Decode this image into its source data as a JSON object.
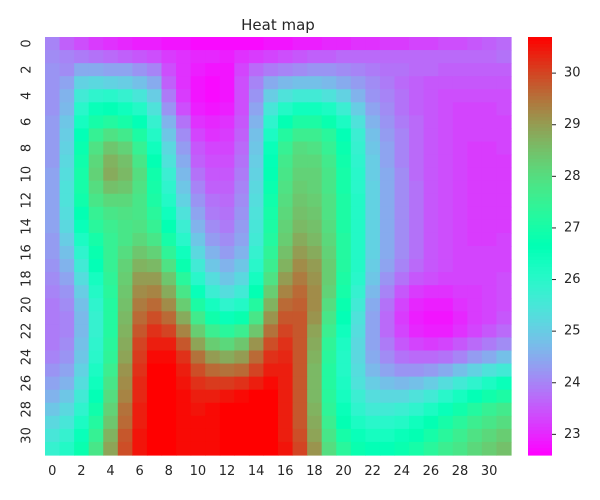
{
  "chart_data": {
    "type": "heatmap",
    "title": "Heat map",
    "x_ticks": [
      "0",
      "2",
      "4",
      "6",
      "8",
      "10",
      "12",
      "14",
      "16",
      "18",
      "20",
      "22",
      "24",
      "26",
      "28",
      "30"
    ],
    "y_ticks": [
      "0",
      "2",
      "4",
      "6",
      "8",
      "10",
      "12",
      "14",
      "16",
      "18",
      "20",
      "22",
      "24",
      "26",
      "28",
      "30"
    ],
    "colorbar_ticks": [
      "23",
      "24",
      "25",
      "26",
      "27",
      "28",
      "29",
      "30"
    ],
    "colorbar_ticks_values": [
      23,
      24,
      25,
      26,
      27,
      28,
      29,
      30
    ],
    "vmin": 22.6,
    "vmax": 30.7,
    "colormap": "rainbow",
    "rows": 32,
    "cols": 32,
    "values": [
      [
        24.0,
        23.6,
        23.4,
        23.2,
        23.1,
        23.0,
        22.9,
        22.9,
        22.8,
        22.8,
        22.7,
        22.7,
        22.7,
        22.7,
        22.7,
        22.8,
        22.8,
        22.9,
        22.9,
        23.0,
        23.0,
        23.1,
        23.1,
        23.2,
        23.2,
        23.3,
        23.3,
        23.4,
        23.4,
        23.5,
        23.6,
        23.7
      ],
      [
        24.1,
        24.0,
        23.9,
        23.8,
        23.7,
        23.6,
        23.5,
        23.4,
        23.2,
        23.1,
        23.0,
        23.0,
        22.9,
        23.1,
        23.2,
        23.3,
        23.4,
        23.5,
        23.6,
        23.6,
        23.7,
        23.7,
        23.7,
        23.7,
        23.7,
        23.7,
        23.7,
        23.7,
        23.7,
        23.7,
        23.7,
        23.8
      ],
      [
        24.2,
        24.1,
        24.5,
        24.5,
        24.4,
        24.4,
        24.2,
        24.0,
        23.4,
        23.1,
        22.9,
        22.8,
        22.8,
        23.3,
        23.7,
        23.9,
        24.0,
        24.1,
        24.2,
        24.2,
        24.1,
        24.0,
        23.9,
        23.8,
        23.8,
        23.7,
        23.7,
        23.6,
        23.6,
        23.6,
        23.6,
        23.6
      ],
      [
        24.2,
        24.4,
        25.1,
        25.2,
        25.1,
        25.0,
        24.8,
        24.5,
        23.6,
        23.1,
        22.8,
        22.7,
        22.8,
        23.4,
        24.0,
        24.5,
        24.7,
        24.8,
        24.8,
        24.7,
        24.5,
        24.3,
        24.1,
        23.9,
        23.7,
        23.6,
        23.5,
        23.5,
        23.5,
        23.5,
        23.5,
        23.5
      ],
      [
        24.2,
        24.6,
        25.6,
        25.9,
        26.0,
        25.8,
        25.5,
        25.0,
        23.9,
        23.2,
        22.8,
        22.7,
        22.8,
        23.4,
        24.2,
        25.0,
        25.4,
        25.6,
        25.6,
        25.4,
        25.1,
        24.6,
        24.2,
        24.0,
        23.8,
        23.6,
        23.5,
        23.4,
        23.4,
        23.4,
        23.4,
        23.4
      ],
      [
        24.2,
        24.7,
        26.0,
        26.5,
        26.6,
        26.4,
        26.1,
        25.4,
        24.2,
        23.4,
        22.9,
        22.8,
        22.9,
        23.4,
        24.4,
        25.5,
        26.1,
        26.4,
        26.4,
        26.2,
        25.7,
        25.0,
        24.4,
        24.1,
        23.8,
        23.6,
        23.5,
        23.4,
        23.3,
        23.3,
        23.3,
        23.4
      ],
      [
        24.3,
        24.9,
        26.3,
        27.0,
        27.2,
        27.0,
        26.6,
        25.8,
        24.6,
        23.8,
        23.1,
        23.0,
        23.1,
        23.5,
        24.6,
        25.9,
        26.7,
        27.1,
        27.1,
        26.8,
        26.2,
        25.4,
        24.6,
        24.2,
        23.9,
        23.7,
        23.5,
        23.4,
        23.3,
        23.3,
        23.3,
        23.3
      ],
      [
        24.3,
        25.0,
        26.6,
        27.5,
        27.9,
        27.7,
        27.1,
        26.1,
        24.9,
        24.1,
        23.3,
        23.1,
        23.2,
        23.6,
        24.8,
        26.2,
        27.2,
        27.6,
        27.6,
        27.3,
        26.6,
        25.7,
        24.8,
        24.3,
        24.0,
        23.7,
        23.5,
        23.4,
        23.3,
        23.3,
        23.3,
        23.3
      ],
      [
        24.3,
        25.1,
        26.8,
        27.9,
        28.4,
        28.2,
        27.5,
        26.4,
        25.2,
        24.3,
        23.5,
        23.3,
        23.3,
        23.7,
        24.9,
        26.5,
        27.5,
        28.0,
        27.9,
        27.5,
        26.8,
        25.8,
        24.9,
        24.4,
        24.0,
        23.7,
        23.5,
        23.4,
        23.3,
        23.2,
        23.2,
        23.3
      ],
      [
        24.3,
        25.2,
        26.9,
        28.1,
        28.7,
        28.5,
        27.8,
        26.7,
        25.4,
        24.5,
        23.6,
        23.4,
        23.4,
        23.8,
        25.0,
        26.6,
        27.7,
        28.1,
        28.1,
        27.7,
        26.9,
        25.9,
        25.0,
        24.4,
        24.0,
        23.7,
        23.5,
        23.4,
        23.3,
        23.2,
        23.2,
        23.2
      ],
      [
        24.4,
        25.3,
        27.0,
        28.2,
        28.8,
        28.6,
        28.0,
        26.9,
        25.7,
        24.7,
        23.8,
        23.5,
        23.5,
        23.9,
        25.1,
        26.7,
        27.8,
        28.2,
        28.2,
        27.8,
        27.0,
        26.0,
        25.0,
        24.5,
        24.1,
        23.7,
        23.5,
        23.4,
        23.3,
        23.2,
        23.2,
        23.2
      ],
      [
        24.4,
        25.4,
        27.0,
        28.0,
        28.5,
        28.4,
        27.9,
        27.0,
        25.9,
        24.9,
        24.0,
        23.6,
        23.6,
        24.0,
        25.2,
        26.8,
        27.9,
        28.3,
        28.2,
        27.8,
        27.0,
        26.0,
        25.1,
        24.5,
        24.1,
        23.8,
        23.5,
        23.4,
        23.3,
        23.2,
        23.2,
        23.2
      ],
      [
        24.4,
        25.4,
        26.9,
        27.8,
        28.1,
        28.1,
        27.8,
        27.1,
        26.1,
        25.1,
        24.2,
        23.8,
        23.7,
        24.1,
        25.3,
        26.9,
        28.0,
        28.4,
        28.3,
        27.9,
        27.1,
        26.1,
        25.1,
        24.5,
        24.1,
        23.8,
        23.5,
        23.4,
        23.3,
        23.2,
        23.2,
        23.2
      ],
      [
        24.4,
        25.3,
        26.7,
        27.5,
        27.8,
        27.9,
        27.8,
        27.3,
        26.4,
        25.4,
        24.4,
        23.9,
        23.8,
        24.2,
        25.4,
        27.0,
        28.1,
        28.5,
        28.4,
        27.9,
        27.1,
        26.1,
        25.1,
        24.5,
        24.1,
        23.8,
        23.5,
        23.4,
        23.3,
        23.2,
        23.2,
        23.2
      ],
      [
        24.4,
        25.2,
        26.5,
        27.3,
        27.6,
        27.8,
        27.9,
        27.5,
        26.7,
        25.7,
        24.6,
        24.1,
        23.9,
        24.3,
        25.5,
        27.1,
        28.2,
        28.6,
        28.5,
        28.0,
        27.1,
        26.1,
        25.1,
        24.5,
        24.1,
        23.8,
        23.5,
        23.4,
        23.3,
        23.2,
        23.2,
        23.2
      ],
      [
        24.3,
        25.0,
        26.2,
        27.0,
        27.5,
        27.8,
        28.1,
        27.8,
        27.0,
        26.0,
        24.9,
        24.3,
        24.1,
        24.4,
        25.6,
        27.2,
        28.3,
        28.8,
        28.6,
        28.1,
        27.2,
        26.1,
        25.1,
        24.5,
        24.1,
        23.8,
        23.5,
        23.4,
        23.3,
        23.2,
        23.2,
        23.3
      ],
      [
        24.3,
        24.8,
        25.9,
        26.8,
        27.5,
        28.0,
        28.4,
        28.2,
        27.4,
        26.4,
        25.2,
        24.6,
        24.3,
        24.6,
        25.8,
        27.4,
        28.5,
        29.0,
        28.8,
        28.2,
        27.2,
        26.1,
        25.1,
        24.5,
        24.1,
        23.8,
        23.5,
        23.4,
        23.3,
        23.3,
        23.3,
        23.3
      ],
      [
        24.2,
        24.6,
        25.6,
        26.6,
        27.5,
        28.2,
        28.7,
        28.6,
        27.9,
        26.8,
        25.6,
        24.9,
        24.6,
        24.9,
        26.0,
        27.6,
        28.7,
        29.2,
        29.0,
        28.3,
        27.2,
        26.1,
        25.0,
        24.4,
        24.0,
        23.7,
        23.5,
        23.4,
        23.3,
        23.3,
        23.3,
        23.3
      ],
      [
        24.1,
        24.4,
        25.3,
        26.3,
        27.4,
        28.3,
        29.0,
        29.0,
        28.4,
        27.3,
        26.0,
        25.3,
        24.9,
        25.2,
        26.3,
        27.9,
        29.0,
        29.4,
        29.1,
        28.3,
        27.1,
        26.0,
        24.9,
        24.2,
        23.8,
        23.5,
        23.4,
        23.3,
        23.3,
        23.3,
        23.3,
        23.4
      ],
      [
        24.0,
        24.2,
        25.0,
        26.1,
        27.3,
        28.4,
        29.2,
        29.3,
        28.8,
        27.8,
        26.5,
        25.7,
        25.3,
        25.6,
        26.7,
        28.3,
        29.3,
        29.6,
        29.2,
        28.2,
        27.0,
        25.8,
        24.7,
        24.0,
        23.5,
        23.2,
        23.1,
        23.1,
        23.2,
        23.2,
        23.3,
        23.4
      ],
      [
        23.9,
        24.1,
        24.8,
        25.9,
        27.2,
        28.5,
        29.4,
        29.6,
        29.2,
        28.3,
        27.1,
        26.3,
        25.9,
        26.1,
        27.2,
        28.7,
        29.6,
        29.7,
        29.2,
        28.0,
        26.8,
        25.6,
        24.5,
        23.8,
        23.3,
        23.0,
        22.9,
        22.9,
        23.1,
        23.2,
        23.3,
        23.4
      ],
      [
        23.9,
        24.0,
        24.7,
        25.8,
        27.2,
        28.6,
        29.6,
        29.9,
        29.6,
        28.8,
        27.7,
        26.9,
        26.5,
        26.8,
        27.8,
        29.1,
        29.8,
        29.8,
        29.1,
        27.8,
        26.6,
        25.4,
        24.4,
        23.7,
        23.2,
        22.9,
        22.8,
        22.8,
        23.0,
        23.2,
        23.3,
        23.5
      ],
      [
        23.9,
        24.0,
        24.7,
        25.8,
        27.2,
        28.7,
        29.8,
        30.2,
        30.0,
        29.3,
        28.3,
        27.6,
        27.3,
        27.6,
        28.4,
        29.5,
        30.0,
        29.8,
        28.9,
        27.6,
        26.4,
        25.3,
        24.4,
        23.7,
        23.3,
        23.0,
        22.9,
        22.9,
        23.1,
        23.3,
        23.5,
        23.7
      ],
      [
        23.9,
        24.1,
        24.8,
        25.9,
        27.3,
        28.8,
        30.0,
        30.4,
        30.4,
        29.8,
        28.9,
        28.3,
        28.1,
        28.4,
        29.1,
        29.9,
        30.2,
        29.8,
        28.8,
        27.4,
        26.2,
        25.2,
        24.4,
        23.9,
        23.5,
        23.3,
        23.2,
        23.3,
        23.5,
        23.7,
        23.9,
        24.1
      ],
      [
        24.0,
        24.2,
        24.9,
        26.0,
        27.4,
        28.9,
        30.1,
        30.6,
        30.6,
        30.2,
        29.5,
        29.0,
        28.8,
        29.0,
        29.6,
        30.2,
        30.3,
        29.8,
        28.7,
        27.3,
        26.1,
        25.2,
        24.5,
        24.1,
        23.8,
        23.7,
        23.7,
        23.8,
        24.0,
        24.3,
        24.5,
        24.8
      ],
      [
        24.2,
        24.4,
        25.1,
        26.2,
        27.6,
        29.1,
        30.2,
        30.7,
        30.7,
        30.4,
        29.9,
        29.6,
        29.5,
        29.6,
        30.0,
        30.4,
        30.4,
        29.8,
        28.6,
        27.2,
        26.1,
        25.3,
        24.7,
        24.4,
        24.2,
        24.2,
        24.3,
        24.5,
        24.8,
        25.1,
        25.4,
        25.6
      ],
      [
        24.4,
        24.6,
        25.3,
        26.4,
        27.8,
        29.2,
        30.3,
        30.7,
        30.7,
        30.5,
        30.2,
        30.1,
        30.1,
        30.2,
        30.4,
        30.6,
        30.4,
        29.8,
        28.6,
        27.2,
        26.2,
        25.4,
        25.0,
        24.8,
        24.7,
        24.8,
        25.0,
        25.3,
        25.6,
        25.9,
        26.2,
        26.5
      ],
      [
        24.6,
        24.9,
        25.6,
        26.6,
        28.0,
        29.3,
        30.3,
        30.7,
        30.7,
        30.6,
        30.4,
        30.4,
        30.5,
        30.6,
        30.7,
        30.7,
        30.4,
        29.8,
        28.6,
        27.3,
        26.3,
        25.7,
        25.3,
        25.2,
        25.2,
        25.4,
        25.6,
        26.0,
        26.3,
        26.6,
        26.9,
        27.1
      ],
      [
        24.9,
        25.2,
        25.9,
        26.9,
        28.2,
        29.5,
        30.4,
        30.7,
        30.7,
        30.6,
        30.5,
        30.6,
        30.7,
        30.7,
        30.7,
        30.7,
        30.4,
        29.8,
        28.7,
        27.4,
        26.5,
        25.9,
        25.6,
        25.6,
        25.7,
        25.9,
        26.2,
        26.5,
        26.9,
        27.2,
        27.5,
        27.7
      ],
      [
        25.2,
        25.5,
        26.2,
        27.2,
        28.4,
        29.6,
        30.4,
        30.7,
        30.7,
        30.6,
        30.6,
        30.6,
        30.7,
        30.7,
        30.7,
        30.7,
        30.4,
        29.8,
        28.8,
        27.6,
        26.7,
        26.2,
        26.0,
        26.0,
        26.1,
        26.4,
        26.7,
        27.0,
        27.3,
        27.6,
        27.8,
        28.0
      ],
      [
        25.5,
        25.8,
        26.5,
        27.5,
        28.7,
        29.8,
        30.5,
        30.7,
        30.7,
        30.6,
        30.6,
        30.6,
        30.7,
        30.7,
        30.7,
        30.7,
        30.4,
        29.9,
        28.9,
        27.8,
        27.0,
        26.5,
        26.3,
        26.3,
        26.5,
        26.7,
        27.0,
        27.3,
        27.6,
        27.9,
        28.1,
        28.3
      ],
      [
        25.8,
        26.1,
        26.8,
        27.8,
        28.9,
        29.9,
        30.5,
        30.7,
        30.7,
        30.6,
        30.6,
        30.6,
        30.7,
        30.7,
        30.7,
        30.7,
        30.5,
        30.0,
        29.1,
        28.0,
        27.3,
        26.8,
        26.6,
        26.6,
        26.8,
        27.0,
        27.3,
        27.6,
        27.8,
        28.1,
        28.3,
        28.5
      ]
    ]
  }
}
